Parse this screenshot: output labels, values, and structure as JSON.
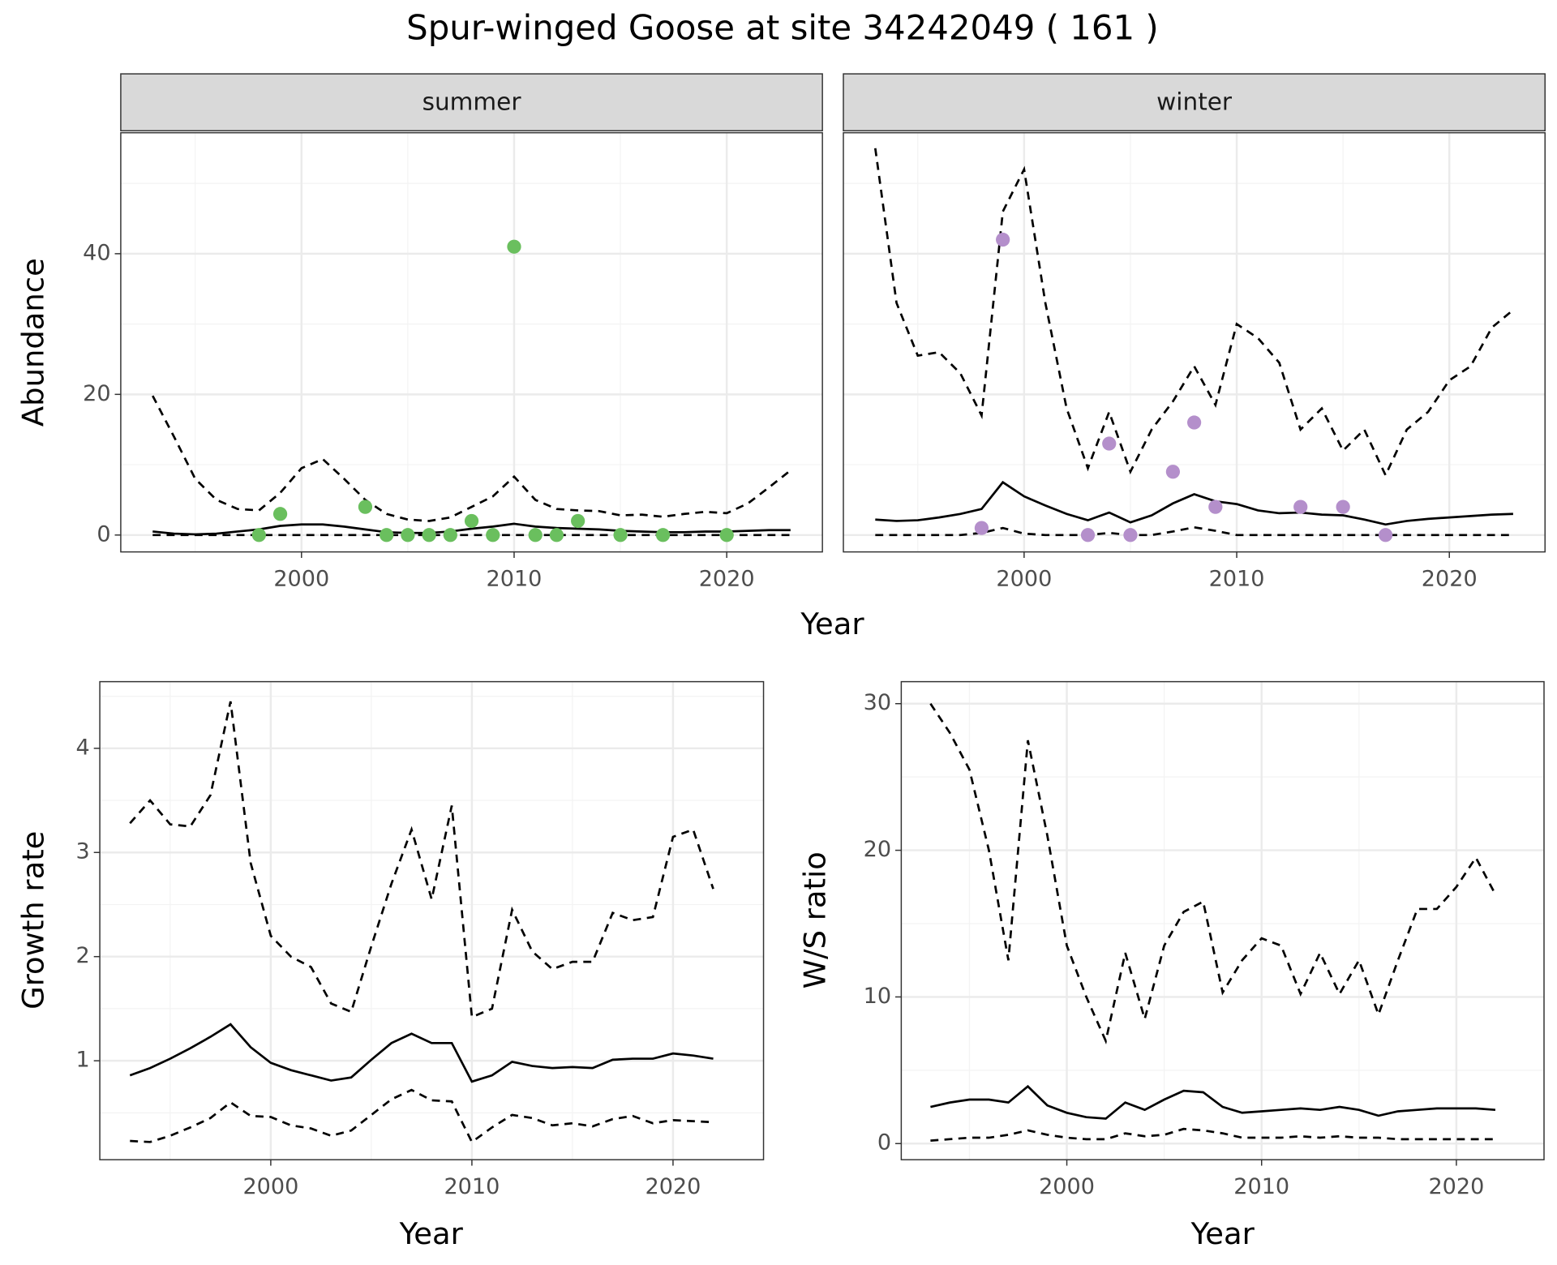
{
  "title": "Spur-winged Goose at site 34242049 ( 161 )",
  "chart_data": [
    {
      "type": "line",
      "xlabel": "Year",
      "ylabel": "Abundance",
      "grid": true,
      "xlim": [
        1991.5,
        2024.5
      ],
      "ylim": [
        -2.4,
        57.2
      ],
      "xticks": [
        2000,
        2010,
        2020
      ],
      "yticks": [
        0,
        20,
        40
      ],
      "xminor": [
        1995,
        2005,
        2015
      ],
      "yminor": [
        10,
        30,
        50
      ],
      "x": [
        1993,
        1994,
        1995,
        1996,
        1997,
        1998,
        1999,
        2000,
        2001,
        2002,
        2003,
        2004,
        2005,
        2006,
        2007,
        2008,
        2009,
        2010,
        2011,
        2012,
        2013,
        2014,
        2015,
        2016,
        2017,
        2018,
        2019,
        2020,
        2021,
        2022,
        2023
      ],
      "facets": [
        {
          "strip": "summer",
          "series": [
            {
              "color": "#000000",
              "dash": false,
              "values": [
                0.5,
                0.2,
                0.1,
                0.2,
                0.5,
                0.8,
                1.3,
                1.5,
                1.5,
                1.2,
                0.8,
                0.4,
                0.3,
                0.3,
                0.5,
                0.9,
                1.2,
                1.6,
                1.2,
                1.0,
                0.9,
                0.8,
                0.6,
                0.5,
                0.4,
                0.4,
                0.5,
                0.5,
                0.6,
                0.7,
                0.7
              ]
            },
            {
              "color": "#000000",
              "dash": true,
              "values": [
                19.8,
                14,
                8,
                5,
                3.7,
                3.5,
                6,
                9.5,
                10.8,
                8,
                5,
                3,
                2.2,
                2,
                2.5,
                4,
                5.5,
                8.3,
                5,
                3.7,
                3.5,
                3.4,
                2.8,
                2.9,
                2.6,
                3,
                3.3,
                3.1,
                4.5,
                6.8,
                9.2
              ]
            },
            {
              "color": "#000000",
              "dash": true,
              "values": [
                0,
                0,
                0,
                0,
                0,
                0,
                0,
                0,
                0,
                0,
                0,
                0,
                0,
                0,
                0,
                0,
                0,
                0,
                0,
                0,
                0,
                0,
                0,
                0,
                0,
                0,
                0,
                0,
                0,
                0,
                0
              ]
            }
          ],
          "points": {
            "color": "#6abf5e",
            "x": [
              1998,
              1999,
              2003,
              2004,
              2005,
              2006,
              2007,
              2008,
              2009,
              2010,
              2011,
              2012,
              2013,
              2015,
              2017,
              2020
            ],
            "values": [
              0,
              3,
              4,
              0,
              0,
              0,
              0,
              2,
              0,
              41,
              0,
              0,
              2,
              0,
              0,
              0
            ]
          }
        },
        {
          "strip": "winter",
          "series": [
            {
              "color": "#000000",
              "dash": false,
              "values": [
                2.2,
                2,
                2.1,
                2.5,
                3,
                3.7,
                7.5,
                5.5,
                4.2,
                3,
                2.1,
                3.2,
                1.8,
                2.8,
                4.5,
                5.8,
                4.8,
                4.4,
                3.5,
                3.1,
                3.2,
                2.9,
                2.8,
                2.2,
                1.5,
                2,
                2.3,
                2.5,
                2.7,
                2.9,
                3
              ]
            },
            {
              "color": "#000000",
              "dash": true,
              "values": [
                55,
                33,
                25.5,
                26,
                23,
                17,
                46,
                52,
                33,
                18,
                9.5,
                17.5,
                9,
                15,
                19,
                24,
                18.5,
                30,
                28,
                24.5,
                15,
                18,
                12,
                15,
                8.5,
                15,
                17.5,
                22,
                24,
                29.5,
                32
              ]
            },
            {
              "color": "#000000",
              "dash": true,
              "values": [
                0,
                0,
                0,
                0,
                0,
                0.3,
                1,
                0.2,
                0,
                0,
                0,
                0.3,
                0,
                0,
                0.5,
                1.1,
                0.6,
                0,
                0,
                0,
                0,
                0,
                0,
                0,
                0,
                0,
                0,
                0,
                0,
                0,
                0
              ]
            }
          ],
          "points": {
            "color": "#b48fcb",
            "x": [
              1998,
              1999,
              2003,
              2004,
              2005,
              2007,
              2008,
              2009,
              2013,
              2015,
              2017
            ],
            "values": [
              1,
              42,
              0,
              13,
              0,
              9,
              16,
              4,
              4,
              4,
              0
            ]
          }
        }
      ]
    },
    {
      "type": "line",
      "xlabel": "Year",
      "ylabel": "Growth rate",
      "grid": true,
      "xlim": [
        1991.5,
        2024.5
      ],
      "ylim": [
        0.05,
        4.64
      ],
      "xticks": [
        2000,
        2010,
        2020
      ],
      "yticks": [
        1,
        2,
        3,
        4
      ],
      "xminor": [
        1995,
        2005,
        2015
      ],
      "yminor": [
        0.5,
        1.5,
        2.5,
        3.5,
        4.5
      ],
      "x": [
        1993,
        1994,
        1995,
        1996,
        1997,
        1998,
        1999,
        2000,
        2001,
        2002,
        2003,
        2004,
        2005,
        2006,
        2007,
        2008,
        2009,
        2010,
        2011,
        2012,
        2013,
        2014,
        2015,
        2016,
        2017,
        2018,
        2019,
        2020,
        2021,
        2022
      ],
      "series": [
        {
          "color": "#000000",
          "dash": false,
          "values": [
            0.86,
            0.93,
            1.02,
            1.12,
            1.23,
            1.35,
            1.13,
            0.98,
            0.91,
            0.86,
            0.81,
            0.84,
            1.01,
            1.17,
            1.26,
            1.17,
            1.17,
            0.8,
            0.86,
            0.99,
            0.95,
            0.93,
            0.94,
            0.93,
            1.01,
            1.02,
            1.02,
            1.07,
            1.05,
            1.02
          ]
        },
        {
          "color": "#000000",
          "dash": true,
          "values": [
            3.28,
            3.5,
            3.27,
            3.25,
            3.55,
            4.45,
            2.9,
            2.2,
            2.0,
            1.9,
            1.55,
            1.47,
            2.1,
            2.7,
            3.22,
            2.55,
            3.45,
            1.42,
            1.5,
            2.45,
            2.05,
            1.88,
            1.95,
            1.95,
            2.42,
            2.35,
            2.38,
            3.15,
            3.22,
            2.65
          ]
        },
        {
          "color": "#000000",
          "dash": true,
          "values": [
            0.23,
            0.22,
            0.28,
            0.36,
            0.45,
            0.6,
            0.47,
            0.46,
            0.38,
            0.35,
            0.28,
            0.33,
            0.48,
            0.63,
            0.72,
            0.62,
            0.61,
            0.22,
            0.36,
            0.48,
            0.45,
            0.38,
            0.4,
            0.37,
            0.44,
            0.47,
            0.4,
            0.43,
            0.42,
            0.41
          ]
        }
      ]
    },
    {
      "type": "line",
      "xlabel": "Year",
      "ylabel": "W/S ratio",
      "grid": true,
      "xlim": [
        1991.5,
        2024.5
      ],
      "ylim": [
        -1.1,
        31.5
      ],
      "xticks": [
        2000,
        2010,
        2020
      ],
      "yticks": [
        0,
        10,
        20,
        30
      ],
      "xminor": [
        1995,
        2005,
        2015
      ],
      "yminor": [
        5,
        15,
        25
      ],
      "x": [
        1993,
        1994,
        1995,
        1996,
        1997,
        1998,
        1999,
        2000,
        2001,
        2002,
        2003,
        2004,
        2005,
        2006,
        2007,
        2008,
        2009,
        2010,
        2011,
        2012,
        2013,
        2014,
        2015,
        2016,
        2017,
        2018,
        2019,
        2020,
        2021,
        2022
      ],
      "series": [
        {
          "color": "#000000",
          "dash": false,
          "values": [
            2.5,
            2.8,
            3.0,
            3.0,
            2.8,
            3.9,
            2.6,
            2.1,
            1.8,
            1.7,
            2.8,
            2.3,
            3.0,
            3.6,
            3.5,
            2.5,
            2.1,
            2.2,
            2.3,
            2.4,
            2.3,
            2.5,
            2.3,
            1.9,
            2.2,
            2.3,
            2.4,
            2.4,
            2.4,
            2.3
          ]
        },
        {
          "color": "#000000",
          "dash": true,
          "values": [
            30,
            28,
            25.5,
            20,
            12.5,
            27.5,
            21,
            13.5,
            10,
            7,
            13,
            8.5,
            13.5,
            15.8,
            16.5,
            10.3,
            12.5,
            14,
            13.5,
            10.2,
            13,
            10.2,
            12.5,
            8.8,
            12.5,
            16,
            16,
            17.5,
            19.5,
            17
          ]
        },
        {
          "color": "#000000",
          "dash": true,
          "values": [
            0.2,
            0.3,
            0.4,
            0.4,
            0.6,
            0.9,
            0.6,
            0.4,
            0.3,
            0.3,
            0.7,
            0.5,
            0.6,
            1.0,
            0.9,
            0.7,
            0.4,
            0.4,
            0.4,
            0.5,
            0.4,
            0.5,
            0.4,
            0.4,
            0.3,
            0.3,
            0.3,
            0.3,
            0.3,
            0.3
          ]
        }
      ]
    }
  ]
}
